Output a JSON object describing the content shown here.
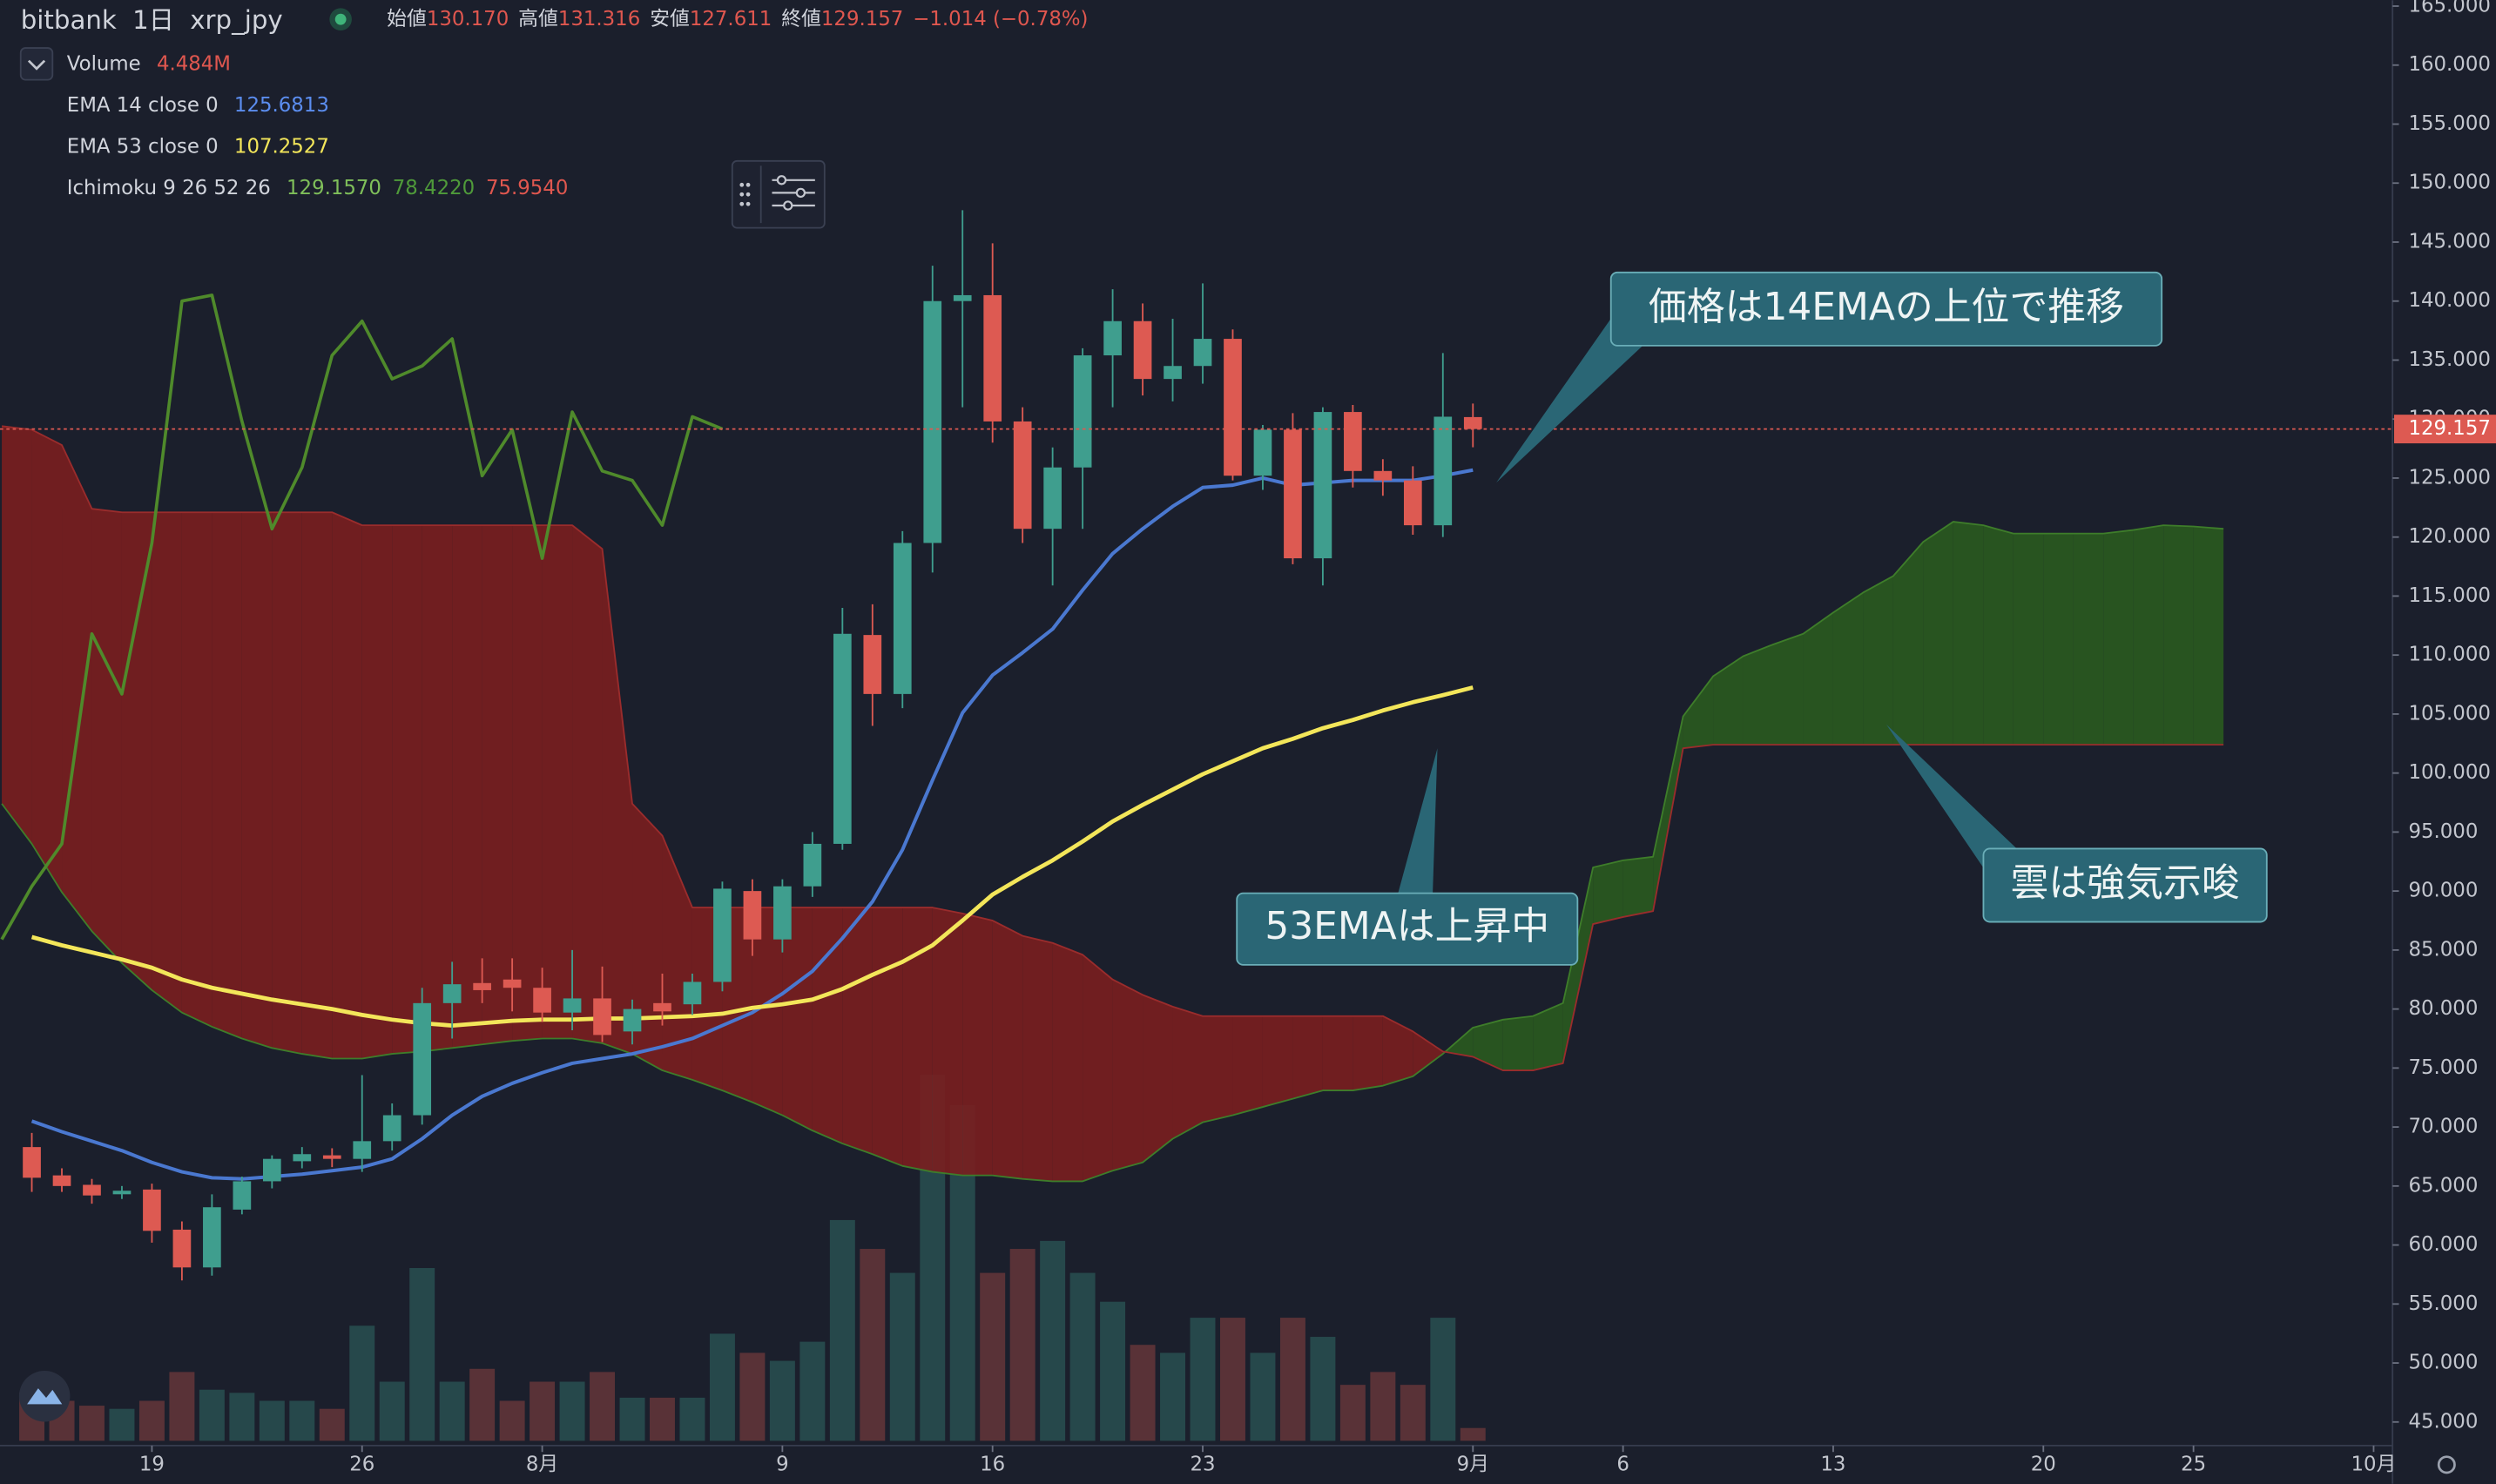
{
  "chart_data": {
    "type": "candlestick",
    "header": {
      "exchange": "bitbank",
      "interval": "1日",
      "symbol": "xrp_jpy",
      "open_label": "始値",
      "open": "130.170",
      "high_label": "高値",
      "high": "131.316",
      "low_label": "安値",
      "low": "127.611",
      "close_label": "終値",
      "close": "129.157",
      "change": "−1.014 (−0.78%)"
    },
    "x": [
      0,
      1,
      2,
      3,
      4,
      5,
      6,
      7,
      8,
      9,
      10,
      11,
      12,
      13,
      14,
      15,
      16,
      17,
      18,
      19,
      20,
      21,
      22,
      23,
      24,
      25,
      26,
      27,
      28,
      29,
      30,
      31,
      32,
      33,
      34,
      35,
      36,
      37,
      38,
      39,
      40,
      41,
      42,
      43,
      44,
      45,
      46,
      47,
      48
    ],
    "open": [
      68.3,
      65.9,
      65.1,
      64.3,
      64.7,
      61.3,
      58.1,
      63.0,
      65.4,
      67.1,
      67.6,
      67.3,
      68.8,
      71.0,
      80.5,
      82.2,
      82.5,
      81.8,
      79.7,
      80.9,
      78.1,
      80.5,
      80.4,
      82.3,
      90.0,
      85.9,
      90.4,
      94.0,
      111.7,
      106.7,
      119.5,
      140.0,
      140.5,
      129.8,
      120.7,
      125.9,
      135.4,
      138.3,
      133.4,
      134.5,
      136.8,
      125.2,
      129.1,
      118.2,
      130.6,
      125.6,
      124.8,
      121.0,
      130.17
    ],
    "high": [
      69.5,
      66.5,
      65.6,
      65.0,
      65.2,
      62.0,
      64.3,
      65.8,
      67.6,
      68.3,
      68.2,
      74.4,
      72.0,
      81.8,
      84.0,
      84.3,
      84.3,
      83.5,
      85.0,
      83.6,
      80.8,
      83.0,
      83.0,
      90.8,
      91.0,
      91.0,
      95.0,
      114.0,
      114.3,
      120.5,
      143.0,
      147.7,
      144.9,
      131.0,
      127.6,
      136.0,
      141.0,
      139.8,
      138.5,
      141.5,
      137.6,
      129.5,
      130.5,
      131.0,
      131.2,
      126.6,
      126.0,
      135.6,
      131.316
    ],
    "low": [
      64.5,
      64.5,
      63.5,
      63.9,
      60.2,
      57.0,
      57.4,
      62.6,
      64.8,
      66.5,
      66.6,
      66.2,
      68.0,
      70.2,
      77.5,
      80.5,
      79.8,
      78.9,
      78.2,
      77.2,
      77.0,
      78.6,
      79.5,
      81.5,
      84.5,
      84.8,
      89.5,
      93.5,
      104.0,
      105.5,
      117.0,
      131.0,
      128.0,
      119.5,
      115.9,
      120.7,
      131.0,
      132.0,
      131.5,
      133.0,
      124.8,
      124.0,
      117.7,
      115.9,
      124.2,
      123.5,
      120.2,
      120.0,
      127.611
    ],
    "close": [
      65.7,
      65.0,
      64.2,
      64.6,
      61.2,
      58.1,
      63.2,
      65.4,
      67.3,
      67.7,
      67.3,
      68.8,
      71.0,
      80.5,
      82.1,
      81.6,
      81.8,
      79.7,
      80.9,
      77.8,
      80.0,
      79.8,
      82.3,
      90.2,
      85.9,
      90.4,
      94.0,
      111.8,
      106.7,
      119.5,
      140.0,
      140.5,
      129.8,
      120.7,
      125.9,
      135.4,
      138.3,
      133.4,
      134.5,
      136.8,
      125.2,
      129.1,
      118.2,
      130.6,
      125.6,
      124.8,
      121.0,
      130.2,
      129.157
    ],
    "up_color": "#3f9e8e",
    "down_color": "#dd5a52",
    "volume": {
      "name": "Volume",
      "last_label": "4.484M",
      "values": [
        16.8,
        14.0,
        12.3,
        11.2,
        14.0,
        24.1,
        17.9,
        16.8,
        14.0,
        14.0,
        11.2,
        40.3,
        20.7,
        60.5,
        20.7,
        25.2,
        14.0,
        20.7,
        20.7,
        24.1,
        15.1,
        15.1,
        15.1,
        37.5,
        30.8,
        28.0,
        34.7,
        77.3,
        67.2,
        58.8,
        128.2,
        117.6,
        58.8,
        67.2,
        70.0,
        58.8,
        48.7,
        33.6,
        30.8,
        43.1,
        43.1,
        30.8,
        43.1,
        36.4,
        19.6,
        24.1,
        19.6,
        43.1,
        4.484
      ]
    },
    "series": [
      {
        "name": "EMA 14 close 0",
        "color": "#4a78d0",
        "last_label": "125.6813",
        "values": [
          70.5,
          69.6,
          68.8,
          68.0,
          67.0,
          66.2,
          65.7,
          65.6,
          65.8,
          66.0,
          66.3,
          66.6,
          67.3,
          69.0,
          71.0,
          72.6,
          73.7,
          74.6,
          75.4,
          75.8,
          76.2,
          76.8,
          77.5,
          78.6,
          79.7,
          81.3,
          83.2,
          86.0,
          89.1,
          93.5,
          99.4,
          105.1,
          108.3,
          110.2,
          112.2,
          115.5,
          118.6,
          120.7,
          122.6,
          124.2,
          124.4,
          125.0,
          124.4,
          124.6,
          124.8,
          124.8,
          124.8,
          125.2,
          125.6813
        ]
      },
      {
        "name": "EMA 53 close 0",
        "color": "#f3e65a",
        "last_label": "107.2527",
        "values": [
          86.1,
          85.4,
          84.8,
          84.2,
          83.5,
          82.5,
          81.8,
          81.3,
          80.8,
          80.4,
          80.0,
          79.5,
          79.1,
          78.8,
          78.6,
          78.8,
          79.0,
          79.1,
          79.1,
          79.2,
          79.2,
          79.3,
          79.4,
          79.6,
          80.1,
          80.4,
          80.8,
          81.7,
          82.9,
          84.0,
          85.4,
          87.5,
          89.7,
          91.2,
          92.6,
          94.2,
          95.9,
          97.3,
          98.6,
          99.9,
          101.0,
          102.1,
          102.9,
          103.8,
          104.5,
          105.3,
          106.0,
          106.6,
          107.2527
        ]
      }
    ],
    "ichimoku": {
      "name": "Ichimoku 9 26 52 26",
      "lagging": {
        "color": "#4f8a2b",
        "label": "129.1570",
        "x": [
          -1,
          0,
          1,
          2,
          3,
          4,
          5,
          6,
          7,
          8,
          9,
          10,
          11,
          12,
          13,
          14,
          15,
          16,
          17,
          18,
          19,
          20,
          21,
          22,
          23
        ],
        "values": [
          85.9,
          90.4,
          94.0,
          111.8,
          106.7,
          119.5,
          140.0,
          140.5,
          129.8,
          120.7,
          125.9,
          135.4,
          138.3,
          133.4,
          134.5,
          136.8,
          125.2,
          129.1,
          118.2,
          130.6,
          125.6,
          124.8,
          121.0,
          130.2,
          129.157
        ]
      },
      "cloud": {
        "lead1_label": "78.4220",
        "lead2_label": "75.9540",
        "lead1_color": "#3e7d2a",
        "lead2_color": "#9a2c2c",
        "up_color": "#2a5a1f",
        "down_color": "#7a1e1f",
        "x": [
          -1,
          0,
          1,
          2,
          3,
          4,
          5,
          6,
          7,
          8,
          9,
          10,
          11,
          12,
          13,
          14,
          15,
          16,
          17,
          18,
          19,
          20,
          21,
          22,
          23,
          24,
          25,
          26,
          27,
          28,
          29,
          30,
          31,
          32,
          33,
          34,
          35,
          36,
          37,
          38,
          39,
          40,
          41,
          42,
          43,
          44,
          45,
          46,
          47,
          48,
          49,
          50,
          51,
          52,
          53,
          54,
          55,
          56,
          57,
          58,
          59,
          60,
          61,
          62,
          63,
          64,
          65,
          66,
          67,
          68,
          69,
          70,
          71,
          72,
          73
        ],
        "lead1": [
          97.4,
          94.0,
          89.9,
          86.6,
          83.9,
          81.6,
          79.7,
          78.5,
          77.5,
          76.7,
          76.2,
          75.8,
          75.8,
          76.2,
          76.4,
          76.7,
          77.0,
          77.3,
          77.5,
          77.5,
          77.1,
          76.2,
          74.8,
          74.0,
          73.1,
          72.1,
          71.0,
          69.7,
          68.6,
          67.7,
          66.7,
          66.2,
          65.9,
          65.9,
          65.6,
          65.4,
          65.4,
          66.3,
          67.0,
          69.0,
          70.4,
          71.0,
          71.7,
          72.4,
          73.1,
          73.1,
          73.5,
          74.3,
          76.2,
          78.422,
          79.1,
          79.4,
          80.5,
          92.0,
          92.6,
          92.9,
          104.8,
          108.2,
          109.9,
          110.9,
          111.8,
          113.6,
          115.3,
          116.7,
          119.6,
          121.3,
          121.0,
          120.3,
          120.3,
          120.3,
          120.3,
          120.6,
          121.0,
          120.9,
          120.7
        ],
        "lead2": [
          129.4,
          129.1,
          127.8,
          122.4,
          122.1,
          122.1,
          122.1,
          122.1,
          122.1,
          122.1,
          122.1,
          122.1,
          121.0,
          121.0,
          121.0,
          121.0,
          121.0,
          121.0,
          121.0,
          121.0,
          119.0,
          97.4,
          94.7,
          88.6,
          88.6,
          88.6,
          88.6,
          88.6,
          88.6,
          88.6,
          88.6,
          88.6,
          88.1,
          87.5,
          86.2,
          85.6,
          84.6,
          82.5,
          81.2,
          80.2,
          79.4,
          79.4,
          79.4,
          79.4,
          79.4,
          79.4,
          79.4,
          78.1,
          76.4,
          75.954,
          74.8,
          74.8,
          75.4,
          87.2,
          87.8,
          88.3,
          102.1,
          102.4,
          102.4,
          102.4,
          102.4,
          102.4,
          102.4,
          102.4,
          102.4,
          102.4,
          102.4,
          102.4,
          102.4,
          102.4,
          102.4,
          102.4,
          102.4,
          102.4,
          102.4
        ]
      }
    },
    "xlim": [
      -1.06,
      78.63
    ],
    "xticks": [
      {
        "value": 4,
        "label": "19"
      },
      {
        "value": 11,
        "label": "26"
      },
      {
        "value": 17,
        "label": "8月"
      },
      {
        "value": 25,
        "label": "9"
      },
      {
        "value": 32,
        "label": "16"
      },
      {
        "value": 39,
        "label": "23"
      },
      {
        "value": 48,
        "label": "9月"
      },
      {
        "value": 53,
        "label": "6"
      },
      {
        "value": 60,
        "label": "13"
      },
      {
        "value": 67,
        "label": "20"
      },
      {
        "value": 72,
        "label": "25"
      },
      {
        "value": 78,
        "label": "10月"
      }
    ],
    "ylim": [
      43,
      165.5
    ],
    "yticks": [
      {
        "value": 45,
        "label": "45.000"
      },
      {
        "value": 50,
        "label": "50.000"
      },
      {
        "value": 55,
        "label": "55.000"
      },
      {
        "value": 60,
        "label": "60.000"
      },
      {
        "value": 65,
        "label": "65.000"
      },
      {
        "value": 70,
        "label": "70.000"
      },
      {
        "value": 75,
        "label": "75.000"
      },
      {
        "value": 80,
        "label": "80.000"
      },
      {
        "value": 85,
        "label": "85.000"
      },
      {
        "value": 90,
        "label": "90.000"
      },
      {
        "value": 95,
        "label": "95.000"
      },
      {
        "value": 100,
        "label": "100.000"
      },
      {
        "value": 105,
        "label": "105.000"
      },
      {
        "value": 110,
        "label": "110.000"
      },
      {
        "value": 115,
        "label": "115.000"
      },
      {
        "value": 120,
        "label": "120.000"
      },
      {
        "value": 125,
        "label": "125.000"
      },
      {
        "value": 130,
        "label": "130.000"
      },
      {
        "value": 135,
        "label": "135.000"
      },
      {
        "value": 140,
        "label": "140.000"
      },
      {
        "value": 145,
        "label": "145.000"
      },
      {
        "value": 150,
        "label": "150.000"
      },
      {
        "value": 155,
        "label": "155.000"
      },
      {
        "value": 160,
        "label": "160.000"
      },
      {
        "value": 165,
        "label": "165.000"
      }
    ],
    "annotations": [
      "価格は14EMAの上位で推移",
      "53EMAは上昇中",
      "雲は強気示唆"
    ]
  }
}
